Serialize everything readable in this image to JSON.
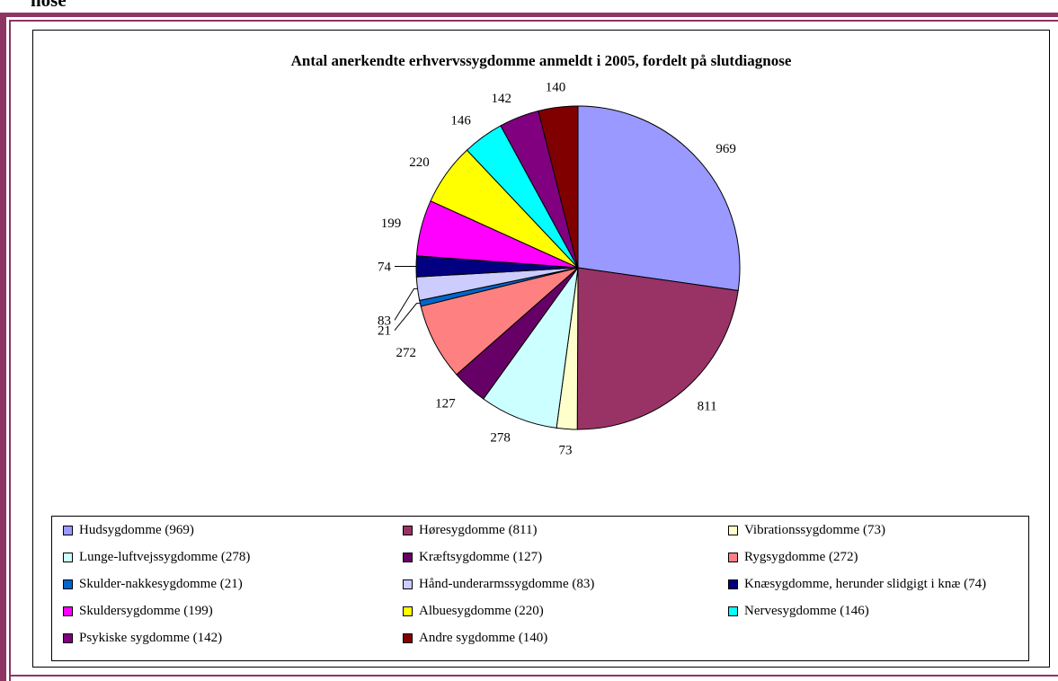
{
  "header": {
    "fragment": "nose"
  },
  "chart_data": {
    "type": "pie",
    "title": "Antal anerkendte erhvervssygdomme anmeldt i 2005, fordelt på slutdiagnose",
    "legend_position": "bottom",
    "slices": [
      {
        "label": "Hudsygdomme",
        "value": 969,
        "color": "#9999ff",
        "legend": "Hudsygdomme (969)"
      },
      {
        "label": "Høresygdomme",
        "value": 811,
        "color": "#993366",
        "legend": "Høresygdomme (811)"
      },
      {
        "label": "Vibrationssygdomme",
        "value": 73,
        "color": "#ffffcc",
        "legend": "Vibrationssygdomme (73)"
      },
      {
        "label": "Lunge-luftvejssygdomme",
        "value": 278,
        "color": "#ccffff",
        "legend": "Lunge-luftvejssygdomme (278)"
      },
      {
        "label": "Kræftsygdomme",
        "value": 127,
        "color": "#660066",
        "legend": "Kræftsygdomme (127)"
      },
      {
        "label": "Rygsygdomme",
        "value": 272,
        "color": "#ff8080",
        "legend": "Rygsygdomme (272)"
      },
      {
        "label": "Skulder-nakkesygdomme",
        "value": 21,
        "color": "#0066cc",
        "legend": "Skulder-nakkesygdomme (21)"
      },
      {
        "label": "Hånd-underarmssygdomme",
        "value": 83,
        "color": "#ccccff",
        "legend": "Hånd-underarmssygdomme (83)"
      },
      {
        "label": "Knæsygdomme, herunder slidgigt i knæ",
        "value": 74,
        "color": "#000080",
        "legend": "Knæsygdomme, herunder slidgigt i knæ (74)"
      },
      {
        "label": "Skuldersygdomme",
        "value": 199,
        "color": "#ff00ff",
        "legend": "Skuldersygdomme (199)"
      },
      {
        "label": "Albuesygdomme",
        "value": 220,
        "color": "#ffff00",
        "legend": "Albuesygdomme (220)"
      },
      {
        "label": "Nervesygdomme",
        "value": 146,
        "color": "#00ffff",
        "legend": "Nervesygdomme (146)"
      },
      {
        "label": "Psykiske sygdomme",
        "value": 142,
        "color": "#800080",
        "legend": "Psykiske sygdomme (142)"
      },
      {
        "label": "Andre sygdomme",
        "value": 140,
        "color": "#800000",
        "legend": "Andre sygdomme (140)"
      }
    ]
  }
}
